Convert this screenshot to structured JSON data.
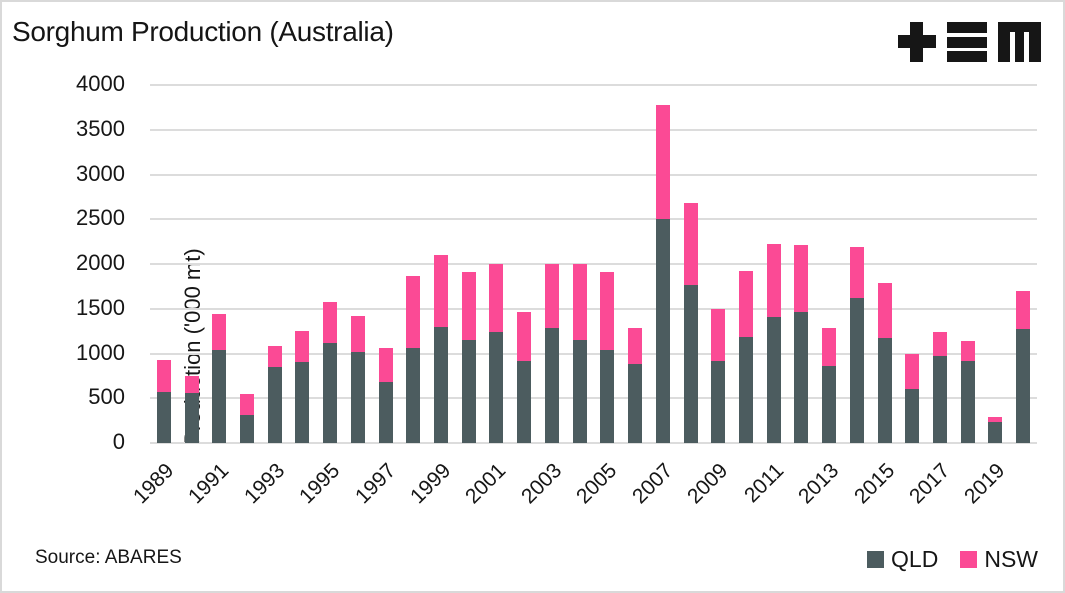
{
  "header": {
    "logo_name": "TEM logo"
  },
  "footer": {
    "source": "Source: ABARES"
  },
  "chart_data": {
    "type": "bar",
    "stacked": true,
    "title": "Sorghum Production (Australia)",
    "ylabel": "Production ('000 mt)",
    "xlabel": "",
    "ylim": [
      0,
      4000
    ],
    "yticks": [
      0,
      500,
      1000,
      1500,
      2000,
      2500,
      3000,
      3500,
      4000
    ],
    "grid": "horizontal",
    "legend_position": "bottom-right",
    "categories": [
      "1989",
      "1990",
      "1991",
      "1992",
      "1993",
      "1994",
      "1995",
      "1996",
      "1997",
      "1998",
      "1999",
      "2000",
      "2001",
      "2002",
      "2003",
      "2004",
      "2005",
      "2006",
      "2007",
      "2008",
      "2009",
      "2010",
      "2011",
      "2012",
      "2013",
      "2014",
      "2015",
      "2016",
      "2017",
      "2018",
      "2019",
      "2020"
    ],
    "x_tick_labels": [
      "1989",
      "1991",
      "1993",
      "1995",
      "1997",
      "1999",
      "2001",
      "2003",
      "2005",
      "2007",
      "2009",
      "2011",
      "2013",
      "2015",
      "2017",
      "2019"
    ],
    "series": [
      {
        "name": "QLD",
        "color": "#4C5C5F",
        "values": [
          570,
          555,
          1040,
          315,
          845,
          910,
          1115,
          1020,
          685,
          1060,
          1300,
          1150,
          1235,
          920,
          1290,
          1150,
          1040,
          885,
          2500,
          1770,
          915,
          1180,
          1410,
          1465,
          860,
          1615,
          1170,
          600,
          970,
          915,
          240,
          1270
        ]
      },
      {
        "name": "NSW",
        "color": "#FB4A95",
        "values": [
          360,
          195,
          400,
          230,
          235,
          345,
          465,
          395,
          375,
          810,
          805,
          765,
          770,
          540,
          705,
          855,
          875,
          395,
          1275,
          915,
          580,
          745,
          815,
          750,
          420,
          575,
          620,
          390,
          275,
          230,
          55,
          430
        ]
      }
    ],
    "source": "Source: ABARES"
  }
}
